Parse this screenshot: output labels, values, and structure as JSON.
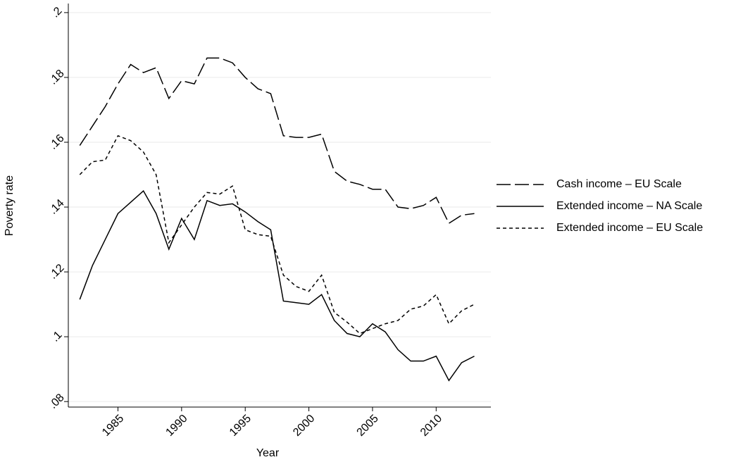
{
  "chart_data": {
    "type": "line",
    "x_label": "Year",
    "y_label": "Poverty rate",
    "x": [
      1982,
      1983,
      1984,
      1985,
      1986,
      1987,
      1988,
      1989,
      1990,
      1991,
      1992,
      1993,
      1994,
      1995,
      1996,
      1997,
      1998,
      1999,
      2000,
      2001,
      2002,
      2003,
      2004,
      2005,
      2006,
      2007,
      2008,
      2009,
      2010,
      2011,
      2012,
      2013
    ],
    "series": [
      {
        "name": "Cash income – EU Scale",
        "color": "#000000",
        "style": "long-dash",
        "values": [
          0.159,
          0.165,
          0.171,
          0.178,
          0.184,
          0.1815,
          0.183,
          0.1735,
          0.179,
          0.178,
          0.186,
          0.186,
          0.1845,
          0.18,
          0.1765,
          0.175,
          0.162,
          0.1615,
          0.1615,
          0.1625,
          0.151,
          0.148,
          0.147,
          0.1455,
          0.1455,
          0.14,
          0.1395,
          0.1405,
          0.143,
          0.135,
          0.1375,
          0.138
        ]
      },
      {
        "name": "Extended income – NA Scale",
        "color": "#000000",
        "style": "solid",
        "values": [
          0.1115,
          0.122,
          0.13,
          0.138,
          0.1415,
          0.145,
          0.138,
          0.127,
          0.1365,
          0.13,
          0.142,
          0.1405,
          0.141,
          0.1385,
          0.1355,
          0.133,
          0.111,
          0.1105,
          0.11,
          0.113,
          0.105,
          0.101,
          0.1,
          0.104,
          0.1015,
          0.096,
          0.0925,
          0.0925,
          0.094,
          0.0865,
          0.092,
          0.094
        ]
      },
      {
        "name": "Extended income – EU Scale",
        "color": "#000000",
        "style": "short-dash",
        "values": [
          0.15,
          0.154,
          0.1545,
          0.162,
          0.1605,
          0.157,
          0.15,
          0.129,
          0.1345,
          0.14,
          0.1445,
          0.144,
          0.1465,
          0.133,
          0.1315,
          0.131,
          0.119,
          0.1155,
          0.114,
          0.119,
          0.1075,
          0.1045,
          0.101,
          0.1025,
          0.104,
          0.105,
          0.1085,
          0.1095,
          0.113,
          0.104,
          0.108,
          0.11
        ]
      }
    ],
    "xlim": [
      1981.1,
      2014.3
    ],
    "xticks": [
      1985,
      1990,
      1995,
      2000,
      2005,
      2010
    ],
    "ylim": [
      0.0783,
      0.2028
    ],
    "yticks": [
      {
        "value": 0.08,
        "label": ".08"
      },
      {
        "value": 0.1,
        "label": ".1"
      },
      {
        "value": 0.12,
        "label": ".12"
      },
      {
        "value": 0.14,
        "label": ".14"
      },
      {
        "value": 0.16,
        "label": ".16"
      },
      {
        "value": 0.18,
        "label": ".18"
      },
      {
        "value": 0.2,
        "label": ".2"
      }
    ],
    "grid": true,
    "legend": "right"
  }
}
